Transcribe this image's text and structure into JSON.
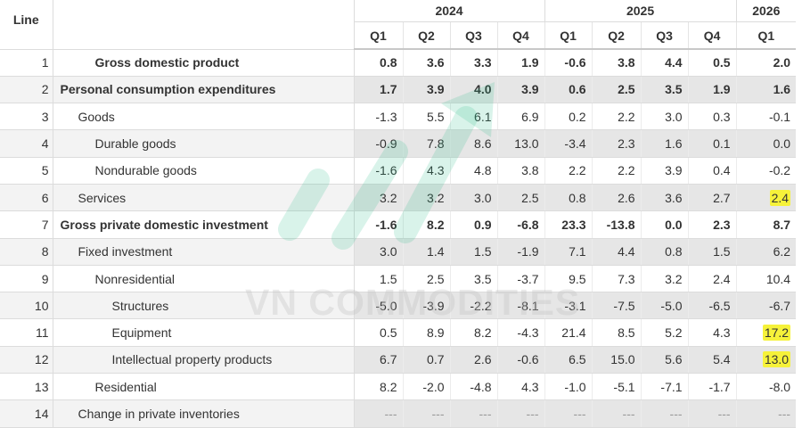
{
  "table": {
    "line_header": "Line",
    "years": [
      {
        "label": "2024",
        "span": 4
      },
      {
        "label": "2025",
        "span": 4
      },
      {
        "label": "2026",
        "span": 1
      }
    ],
    "quarters": [
      "Q1",
      "Q2",
      "Q3",
      "Q4",
      "Q1",
      "Q2",
      "Q3",
      "Q4",
      "Q1"
    ],
    "rows": [
      {
        "line": "1",
        "label": "Gross domestic product",
        "indent": 2,
        "bold": true,
        "values": [
          "0.8",
          "3.6",
          "3.3",
          "1.9",
          "-0.6",
          "3.8",
          "4.4",
          "0.5",
          "2.0"
        ]
      },
      {
        "line": "2",
        "label": "Personal consumption expenditures",
        "indent": 0,
        "bold": true,
        "values": [
          "1.7",
          "3.9",
          "4.0",
          "3.9",
          "0.6",
          "2.5",
          "3.5",
          "1.9",
          "1.6"
        ]
      },
      {
        "line": "3",
        "label": "Goods",
        "indent": 1,
        "bold": false,
        "values": [
          "-1.3",
          "5.5",
          "6.1",
          "6.9",
          "0.2",
          "2.2",
          "3.0",
          "0.3",
          "-0.1"
        ]
      },
      {
        "line": "4",
        "label": "Durable goods",
        "indent": 2,
        "bold": false,
        "values": [
          "-0.9",
          "7.8",
          "8.6",
          "13.0",
          "-3.4",
          "2.3",
          "1.6",
          "0.1",
          "0.0"
        ]
      },
      {
        "line": "5",
        "label": "Nondurable goods",
        "indent": 2,
        "bold": false,
        "values": [
          "-1.6",
          "4.3",
          "4.8",
          "3.8",
          "2.2",
          "2.2",
          "3.9",
          "0.4",
          "-0.2"
        ]
      },
      {
        "line": "6",
        "label": "Services",
        "indent": 1,
        "bold": false,
        "values": [
          "3.2",
          "3.2",
          "3.0",
          "2.5",
          "0.8",
          "2.6",
          "3.6",
          "2.7",
          "2.4"
        ],
        "highlight_last": true
      },
      {
        "line": "7",
        "label": "Gross private domestic investment",
        "indent": 0,
        "bold": true,
        "values": [
          "-1.6",
          "8.2",
          "0.9",
          "-6.8",
          "23.3",
          "-13.8",
          "0.0",
          "2.3",
          "8.7"
        ]
      },
      {
        "line": "8",
        "label": "Fixed investment",
        "indent": 1,
        "bold": false,
        "values": [
          "3.0",
          "1.4",
          "1.5",
          "-1.9",
          "7.1",
          "4.4",
          "0.8",
          "1.5",
          "6.2"
        ]
      },
      {
        "line": "9",
        "label": "Nonresidential",
        "indent": 2,
        "bold": false,
        "values": [
          "1.5",
          "2.5",
          "3.5",
          "-3.7",
          "9.5",
          "7.3",
          "3.2",
          "2.4",
          "10.4"
        ]
      },
      {
        "line": "10",
        "label": "Structures",
        "indent": 3,
        "bold": false,
        "values": [
          "-5.0",
          "-3.9",
          "-2.2",
          "-8.1",
          "-3.1",
          "-7.5",
          "-5.0",
          "-6.5",
          "-6.7"
        ]
      },
      {
        "line": "11",
        "label": "Equipment",
        "indent": 3,
        "bold": false,
        "values": [
          "0.5",
          "8.9",
          "8.2",
          "-4.3",
          "21.4",
          "8.5",
          "5.2",
          "4.3",
          "17.2"
        ],
        "highlight_last": true
      },
      {
        "line": "12",
        "label": "Intellectual property products",
        "indent": 3,
        "bold": false,
        "values": [
          "6.7",
          "0.7",
          "2.6",
          "-0.6",
          "6.5",
          "15.0",
          "5.6",
          "5.4",
          "13.0"
        ],
        "highlight_last": true
      },
      {
        "line": "13",
        "label": "Residential",
        "indent": 2,
        "bold": false,
        "values": [
          "8.2",
          "-2.0",
          "-4.8",
          "4.3",
          "-1.0",
          "-5.1",
          "-7.1",
          "-1.7",
          "-8.0"
        ]
      },
      {
        "line": "14",
        "label": "Change in private inventories",
        "indent": 1,
        "bold": false,
        "values": [
          "---",
          "---",
          "---",
          "---",
          "---",
          "---",
          "---",
          "---",
          "---"
        ]
      }
    ]
  },
  "watermark": {
    "text": "VN COMMODITIES"
  },
  "colors": {
    "highlight": "#f6f23a",
    "alt_row": "#f3f3f3",
    "alt_value_cell": "#e6e6e6",
    "watermark_green": "#2dbd8a"
  }
}
